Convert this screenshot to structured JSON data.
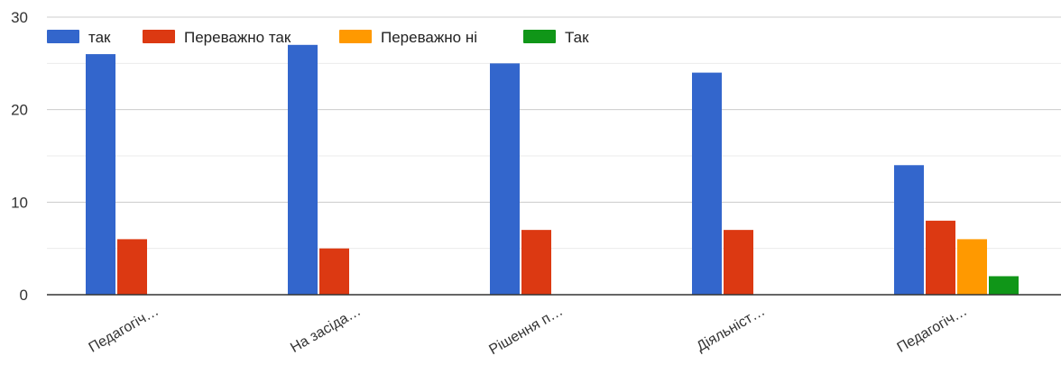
{
  "chart_data": {
    "type": "bar",
    "categories": [
      "Педагогіч…",
      "На засіда…",
      "Рішення п…",
      "Діяльніст…",
      "Педагогіч…"
    ],
    "series": [
      {
        "name": "так",
        "color": "#3366cc",
        "values": [
          26,
          27,
          25,
          24,
          14
        ]
      },
      {
        "name": "Переважно так",
        "color": "#dc3912",
        "values": [
          6,
          5,
          7,
          7,
          8
        ]
      },
      {
        "name": "Переважно ні",
        "color": "#ff9900",
        "values": [
          0,
          0,
          0,
          0,
          6
        ]
      },
      {
        "name": "Так",
        "color": "#109618",
        "values": [
          0,
          0,
          0,
          0,
          2
        ]
      }
    ],
    "y_ticks": [
      0,
      10,
      20,
      30
    ],
    "ylim": [
      0,
      30
    ],
    "grid": true,
    "legend_position": "top-left"
  }
}
